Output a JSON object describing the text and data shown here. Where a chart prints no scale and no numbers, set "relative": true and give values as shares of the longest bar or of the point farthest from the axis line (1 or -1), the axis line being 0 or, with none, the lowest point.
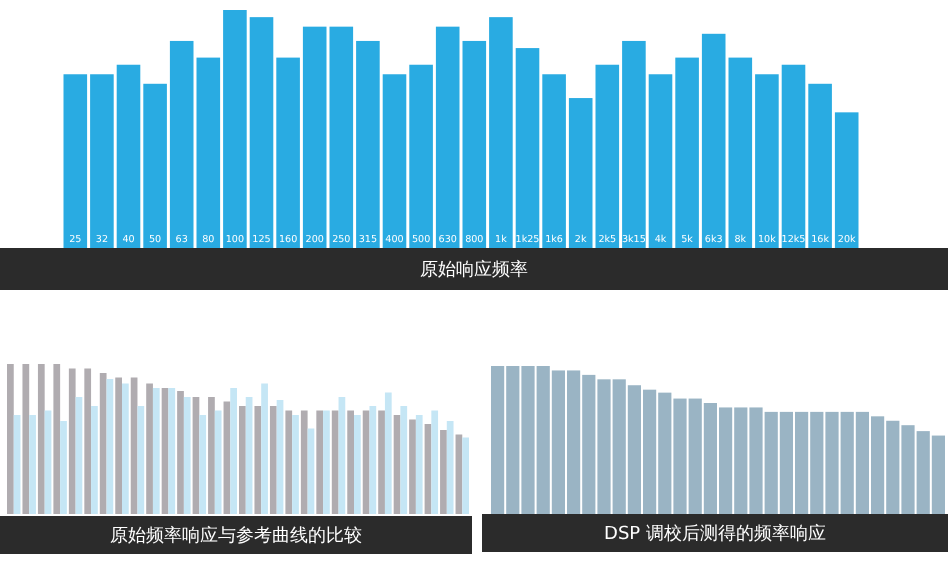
{
  "chart_data": [
    {
      "type": "bar",
      "title": "原始响应频率",
      "relative": true,
      "color": "#29abe2",
      "categories": [
        "25",
        "32",
        "40",
        "50",
        "63",
        "80",
        "100",
        "125",
        "160",
        "200",
        "250",
        "315",
        "400",
        "500",
        "630",
        "800",
        "1k",
        "1k25",
        "1k6",
        "2k",
        "2k5",
        "3k15",
        "4k",
        "5k",
        "6k3",
        "8k",
        "10k",
        "12k5",
        "16k",
        "20k"
      ],
      "values": [
        0.73,
        0.73,
        0.77,
        0.69,
        0.87,
        0.8,
        1,
        0.97,
        0.8,
        0.93,
        0.93,
        0.87,
        0.73,
        0.77,
        0.93,
        0.87,
        0.97,
        0.84,
        0.73,
        0.63,
        0.77,
        0.87,
        0.73,
        0.8,
        0.9,
        0.8,
        0.73,
        0.77,
        0.69,
        0.57
      ]
    },
    {
      "type": "bar",
      "title": "原始频率响应与参考曲线的比较",
      "relative": true,
      "categories": [
        null,
        null,
        null,
        null,
        null,
        null,
        null,
        null,
        null,
        null,
        null,
        null,
        null,
        null,
        null,
        null,
        null,
        null,
        null,
        null,
        null,
        null,
        null,
        null,
        null,
        null,
        null,
        null,
        null,
        null
      ],
      "series": [
        {
          "color": "#b0acb0",
          "values": [
            1,
            1,
            1,
            1,
            0.97,
            0.97,
            0.94,
            0.91,
            0.91,
            0.87,
            0.84,
            0.82,
            0.78,
            0.78,
            0.75,
            0.72,
            0.72,
            0.72,
            0.69,
            0.69,
            0.69,
            0.69,
            0.69,
            0.69,
            0.69,
            0.66,
            0.63,
            0.6,
            0.56,
            0.53
          ]
        },
        {
          "color": "#c5e6f5",
          "values": [
            0.66,
            0.66,
            0.69,
            0.62,
            0.78,
            0.72,
            0.9,
            0.87,
            0.72,
            0.84,
            0.84,
            0.78,
            0.66,
            0.69,
            0.84,
            0.78,
            0.87,
            0.76,
            0.66,
            0.57,
            0.69,
            0.78,
            0.66,
            0.72,
            0.81,
            0.72,
            0.66,
            0.69,
            0.62,
            0.51
          ]
        }
      ]
    },
    {
      "type": "bar",
      "title": "DSP 调校后测得的频率响应",
      "relative": true,
      "color": "#9ab4c4",
      "categories": [
        null,
        null,
        null,
        null,
        null,
        null,
        null,
        null,
        null,
        null,
        null,
        null,
        null,
        null,
        null,
        null,
        null,
        null,
        null,
        null,
        null,
        null,
        null,
        null,
        null,
        null,
        null,
        null,
        null,
        null
      ],
      "values": [
        1,
        1,
        1,
        1,
        0.97,
        0.97,
        0.94,
        0.91,
        0.91,
        0.87,
        0.84,
        0.82,
        0.78,
        0.78,
        0.75,
        0.72,
        0.72,
        0.72,
        0.69,
        0.69,
        0.69,
        0.69,
        0.69,
        0.69,
        0.69,
        0.66,
        0.63,
        0.6,
        0.56,
        0.53
      ]
    }
  ]
}
